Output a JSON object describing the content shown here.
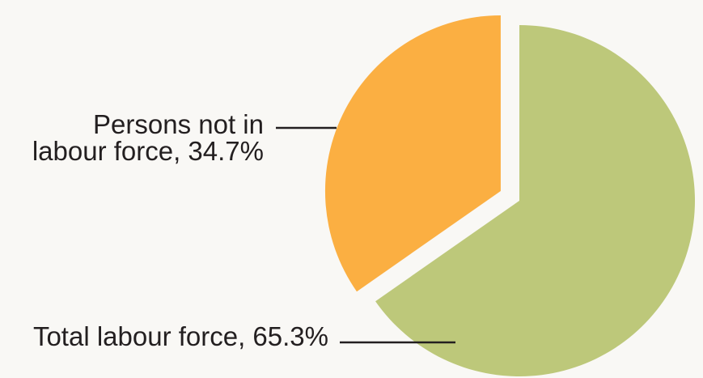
{
  "chart_data": {
    "type": "pie",
    "slices": [
      {
        "label_lines": [
          "Total labour force, 65.3%"
        ],
        "value": 65.3,
        "color": "#bdc87a"
      },
      {
        "label_lines": [
          "Persons not in",
          "labour force, 34.7%"
        ],
        "value": 34.7,
        "color": "#fbaf42",
        "exploded": true
      }
    ],
    "start_angle": "12 o'clock",
    "direction": "clockwise",
    "label_placement": "outside-left with leader lines"
  }
}
